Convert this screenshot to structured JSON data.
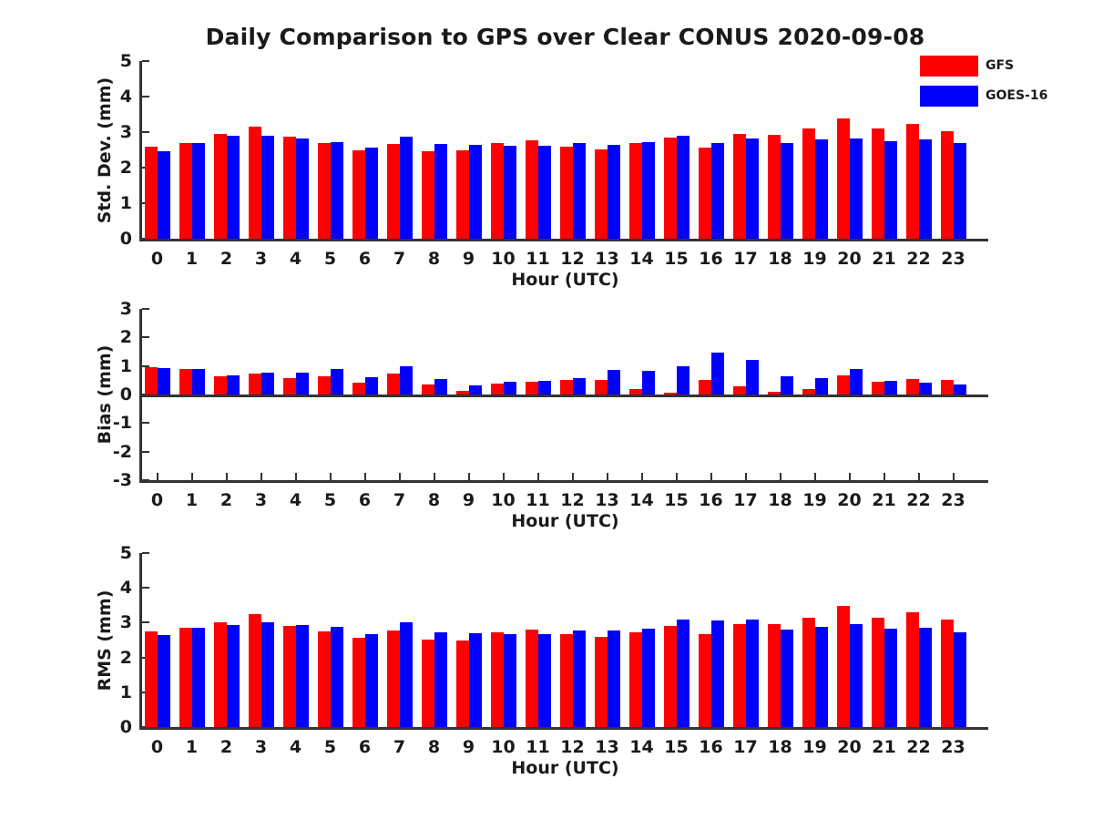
{
  "figure": {
    "title": "Daily Comparison to GPS over Clear CONUS 2020-09-08"
  },
  "legend": {
    "items": [
      {
        "label": "GFS",
        "color": "#ff0000"
      },
      {
        "label": "GOES-16",
        "color": "#0000ff"
      }
    ]
  },
  "chart_data": [
    {
      "type": "bar",
      "panel": "std-dev",
      "ylabel": "Std. Dev. (mm)",
      "xlabel": "Hour (UTC)",
      "categories": [
        "0",
        "1",
        "2",
        "3",
        "4",
        "5",
        "6",
        "7",
        "8",
        "9",
        "10",
        "11",
        "12",
        "13",
        "14",
        "15",
        "16",
        "17",
        "18",
        "19",
        "20",
        "21",
        "22",
        "23"
      ],
      "ylim": [
        0,
        5
      ],
      "yticks": [
        0,
        1,
        2,
        3,
        4,
        5
      ],
      "grid": false,
      "legend_position": "top-right",
      "series": [
        {
          "name": "GFS",
          "color": "#ff0000",
          "values": [
            2.58,
            2.7,
            2.96,
            3.15,
            2.86,
            2.68,
            2.5,
            2.67,
            2.47,
            2.5,
            2.7,
            2.76,
            2.58,
            2.52,
            2.7,
            2.85,
            2.57,
            2.95,
            2.92,
            3.1,
            3.38,
            3.1,
            3.22,
            3.03
          ]
        },
        {
          "name": "GOES-16",
          "color": "#0000ff",
          "values": [
            2.46,
            2.7,
            2.89,
            2.91,
            2.83,
            2.73,
            2.57,
            2.86,
            2.66,
            2.64,
            2.61,
            2.62,
            2.68,
            2.64,
            2.72,
            2.91,
            2.68,
            2.83,
            2.7,
            2.8,
            2.82,
            2.75,
            2.8,
            2.7
          ]
        }
      ]
    },
    {
      "type": "bar",
      "panel": "bias",
      "ylabel": "Bias (mm)",
      "xlabel": "Hour (UTC)",
      "categories": [
        "0",
        "1",
        "2",
        "3",
        "4",
        "5",
        "6",
        "7",
        "8",
        "9",
        "10",
        "11",
        "12",
        "13",
        "14",
        "15",
        "16",
        "17",
        "18",
        "19",
        "20",
        "21",
        "22",
        "23"
      ],
      "ylim": [
        -3,
        3
      ],
      "yticks": [
        -3,
        -2,
        -1,
        0,
        1,
        2,
        3
      ],
      "grid": false,
      "series": [
        {
          "name": "GFS",
          "color": "#ff0000",
          "values": [
            0.95,
            0.9,
            0.65,
            0.75,
            0.57,
            0.65,
            0.43,
            0.72,
            0.35,
            0.13,
            0.38,
            0.45,
            0.5,
            0.5,
            0.2,
            0.07,
            0.5,
            0.3,
            0.08,
            0.2,
            0.68,
            0.44,
            0.53,
            0.5
          ]
        },
        {
          "name": "GOES-16",
          "color": "#0000ff",
          "values": [
            0.93,
            0.88,
            0.68,
            0.78,
            0.77,
            0.9,
            0.62,
            1.0,
            0.53,
            0.32,
            0.45,
            0.48,
            0.58,
            0.85,
            0.83,
            1.0,
            1.47,
            1.2,
            0.63,
            0.57,
            0.89,
            0.47,
            0.43,
            0.35
          ]
        }
      ]
    },
    {
      "type": "bar",
      "panel": "rms",
      "ylabel": "RMS (mm)",
      "xlabel": "Hour (UTC)",
      "categories": [
        "0",
        "1",
        "2",
        "3",
        "4",
        "5",
        "6",
        "7",
        "8",
        "9",
        "10",
        "11",
        "12",
        "13",
        "14",
        "15",
        "16",
        "17",
        "18",
        "19",
        "20",
        "21",
        "22",
        "23"
      ],
      "ylim": [
        0,
        5
      ],
      "yticks": [
        0,
        1,
        2,
        3,
        4,
        5
      ],
      "grid": false,
      "series": [
        {
          "name": "GFS",
          "color": "#ff0000",
          "values": [
            2.75,
            2.85,
            3.02,
            3.24,
            2.9,
            2.76,
            2.56,
            2.78,
            2.52,
            2.5,
            2.72,
            2.8,
            2.67,
            2.6,
            2.73,
            2.9,
            2.67,
            2.97,
            2.95,
            3.15,
            3.47,
            3.15,
            3.3,
            3.1
          ]
        },
        {
          "name": "GOES-16",
          "color": "#0000ff",
          "values": [
            2.64,
            2.85,
            2.94,
            3.0,
            2.94,
            2.88,
            2.66,
            3.02,
            2.72,
            2.7,
            2.66,
            2.67,
            2.77,
            2.78,
            2.84,
            3.1,
            3.07,
            3.09,
            2.8,
            2.87,
            2.96,
            2.83,
            2.86,
            2.73
          ]
        }
      ]
    }
  ]
}
